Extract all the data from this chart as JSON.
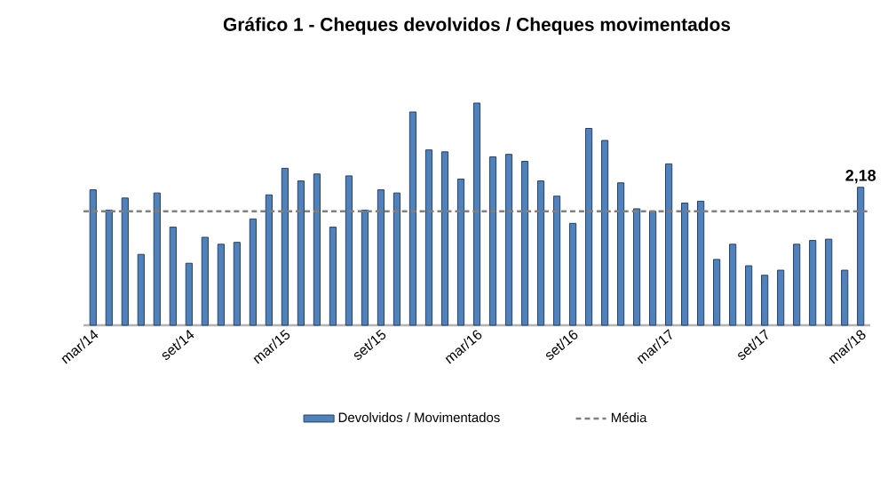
{
  "chart_data": {
    "type": "bar",
    "title": "Gráfico 1 - Cheques devolvidos / Cheques movimentados",
    "legend": "bottom",
    "categories": [
      "mar/14",
      null,
      null,
      null,
      null,
      null,
      "set/14",
      null,
      null,
      null,
      null,
      null,
      "mar/15",
      null,
      null,
      null,
      null,
      null,
      "set/15",
      null,
      null,
      null,
      null,
      null,
      "mar/16",
      null,
      null,
      null,
      null,
      null,
      "set/16",
      null,
      null,
      null,
      null,
      null,
      "mar/17",
      null,
      null,
      null,
      null,
      null,
      "set/17",
      null,
      null,
      null,
      null,
      null,
      "mar/18"
    ],
    "series": [
      {
        "name": "Devolvidos / Movimentados",
        "color": "#4f81bd",
        "values": [
          2.14,
          1.82,
          2.01,
          1.12,
          2.09,
          1.55,
          0.98,
          1.39,
          1.28,
          1.31,
          1.68,
          2.06,
          2.48,
          2.28,
          2.39,
          1.55,
          2.36,
          1.82,
          2.14,
          2.09,
          3.37,
          2.77,
          2.74,
          2.31,
          3.51,
          2.66,
          2.7,
          2.59,
          2.28,
          2.04,
          1.61,
          3.11,
          2.92,
          2.25,
          1.84,
          1.8,
          2.55,
          1.93,
          1.96,
          1.04,
          1.28,
          0.94,
          0.79,
          0.87,
          1.28,
          1.34,
          1.36,
          0.87,
          2.18
        ],
        "value_labels": [
          null,
          null,
          null,
          null,
          null,
          null,
          null,
          null,
          null,
          null,
          null,
          null,
          null,
          null,
          null,
          null,
          null,
          null,
          null,
          null,
          null,
          null,
          null,
          null,
          null,
          null,
          null,
          null,
          null,
          null,
          null,
          null,
          null,
          null,
          null,
          null,
          null,
          null,
          null,
          null,
          null,
          null,
          null,
          null,
          null,
          null,
          null,
          null,
          "2,18"
        ]
      }
    ],
    "ref_lines": [
      {
        "axis": "y",
        "value": 1.8,
        "label": "Média",
        "color": "#808080",
        "line_style": "dashed"
      }
    ]
  }
}
